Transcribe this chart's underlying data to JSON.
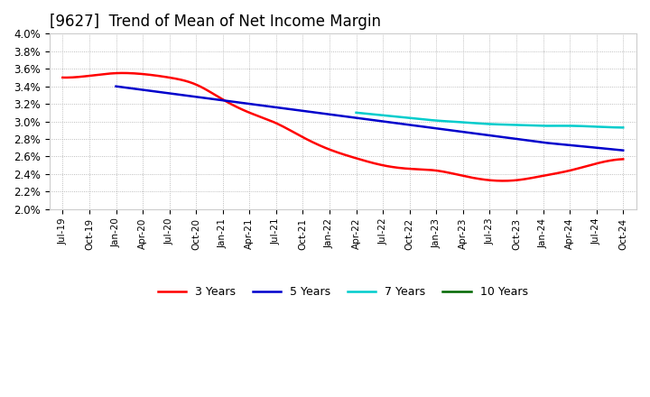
{
  "title": "[9627]  Trend of Mean of Net Income Margin",
  "background_color": "#ffffff",
  "plot_bg_color": "#ffffff",
  "title_fontsize": 12,
  "title_fontweight": "normal",
  "ylim": [
    0.02,
    0.04
  ],
  "ytick_vals": [
    0.02,
    0.022,
    0.024,
    0.026,
    0.028,
    0.03,
    0.032,
    0.034,
    0.036,
    0.038,
    0.04
  ],
  "ytick_labels": [
    "2.0%",
    "2.2%",
    "2.4%",
    "2.6%",
    "2.8%",
    "3.0%",
    "3.2%",
    "3.4%",
    "3.6%",
    "3.8%",
    "4.0%"
  ],
  "x_labels": [
    "Jul-19",
    "Oct-19",
    "Jan-20",
    "Apr-20",
    "Jul-20",
    "Oct-20",
    "Jan-21",
    "Apr-21",
    "Jul-21",
    "Oct-21",
    "Jan-22",
    "Apr-22",
    "Jul-22",
    "Oct-22",
    "Jan-23",
    "Apr-23",
    "Jul-23",
    "Oct-23",
    "Jan-24",
    "Apr-24",
    "Jul-24",
    "Oct-24"
  ],
  "series": [
    {
      "label": "3 Years",
      "color": "#ff0000",
      "linewidth": 1.8,
      "data": [
        3.5,
        3.52,
        3.55,
        3.54,
        3.5,
        3.42,
        3.25,
        3.1,
        2.98,
        2.82,
        2.68,
        2.58,
        2.5,
        2.46,
        2.44,
        2.38,
        2.33,
        2.33,
        2.38,
        2.44,
        2.52,
        2.57
      ]
    },
    {
      "label": "5 Years",
      "color": "#0000cc",
      "linewidth": 1.8,
      "data": [
        null,
        null,
        3.4,
        3.36,
        3.32,
        3.28,
        3.24,
        3.2,
        3.16,
        3.12,
        3.08,
        3.04,
        3.0,
        2.96,
        2.92,
        2.88,
        2.84,
        2.8,
        2.76,
        2.73,
        2.7,
        2.67
      ]
    },
    {
      "label": "7 Years",
      "color": "#00cccc",
      "linewidth": 1.8,
      "data": [
        null,
        null,
        null,
        null,
        null,
        null,
        null,
        null,
        null,
        null,
        null,
        3.1,
        3.07,
        3.04,
        3.01,
        2.99,
        2.97,
        2.96,
        2.95,
        2.95,
        2.94,
        2.93
      ]
    },
    {
      "label": "10 Years",
      "color": "#006600",
      "linewidth": 1.8,
      "data": [
        null,
        null,
        null,
        null,
        null,
        null,
        null,
        null,
        null,
        null,
        null,
        null,
        null,
        null,
        null,
        null,
        null,
        null,
        null,
        null,
        null,
        null
      ]
    }
  ]
}
